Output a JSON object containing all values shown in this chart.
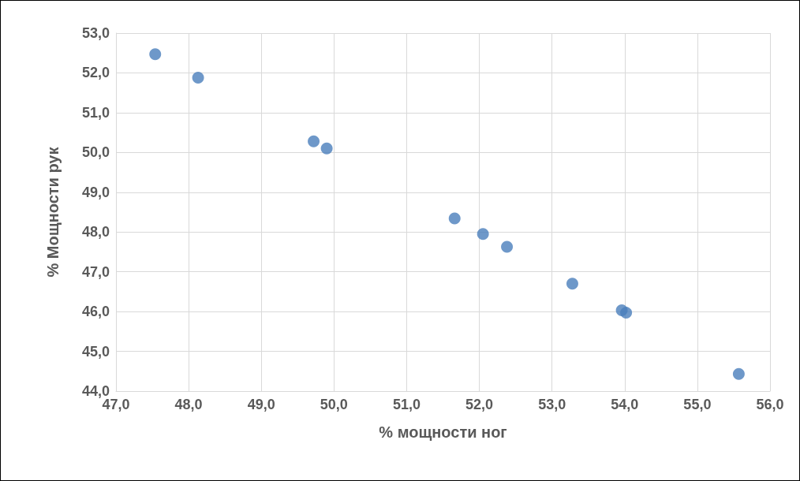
{
  "chart_data": {
    "type": "scatter",
    "xlabel": "% мощности ног",
    "ylabel": "% Мощности рук",
    "x": [
      47.54,
      48.13,
      49.72,
      49.9,
      51.66,
      52.05,
      52.38,
      53.28,
      53.96,
      54.02,
      55.57
    ],
    "series": [
      {
        "color": "#4a7ebb",
        "values": [
          52.47,
          51.88,
          50.28,
          50.1,
          48.34,
          47.95,
          47.63,
          46.7,
          46.03,
          45.97,
          44.43
        ]
      }
    ],
    "xlim": [
      47,
      56
    ],
    "xticks": [
      {
        "value": 47,
        "label": "47,0"
      },
      {
        "value": 48,
        "label": "48,0"
      },
      {
        "value": 49,
        "label": "49,0"
      },
      {
        "value": 50,
        "label": "50,0"
      },
      {
        "value": 51,
        "label": "51,0"
      },
      {
        "value": 52,
        "label": "52,0"
      },
      {
        "value": 53,
        "label": "53,0"
      },
      {
        "value": 54,
        "label": "54,0"
      },
      {
        "value": 55,
        "label": "55,0"
      },
      {
        "value": 56,
        "label": "56,0"
      }
    ],
    "ylim": [
      44,
      53
    ],
    "yticks": [
      {
        "value": 44,
        "label": "44,0"
      },
      {
        "value": 45,
        "label": "45,0"
      },
      {
        "value": 46,
        "label": "46,0"
      },
      {
        "value": 47,
        "label": "47,0"
      },
      {
        "value": 48,
        "label": "48,0"
      },
      {
        "value": 49,
        "label": "49,0"
      },
      {
        "value": 50,
        "label": "50,0"
      },
      {
        "value": 51,
        "label": "51,0"
      },
      {
        "value": 52,
        "label": "52,0"
      },
      {
        "value": 53,
        "label": "53,0"
      }
    ],
    "grid": true,
    "marker": "circle"
  }
}
